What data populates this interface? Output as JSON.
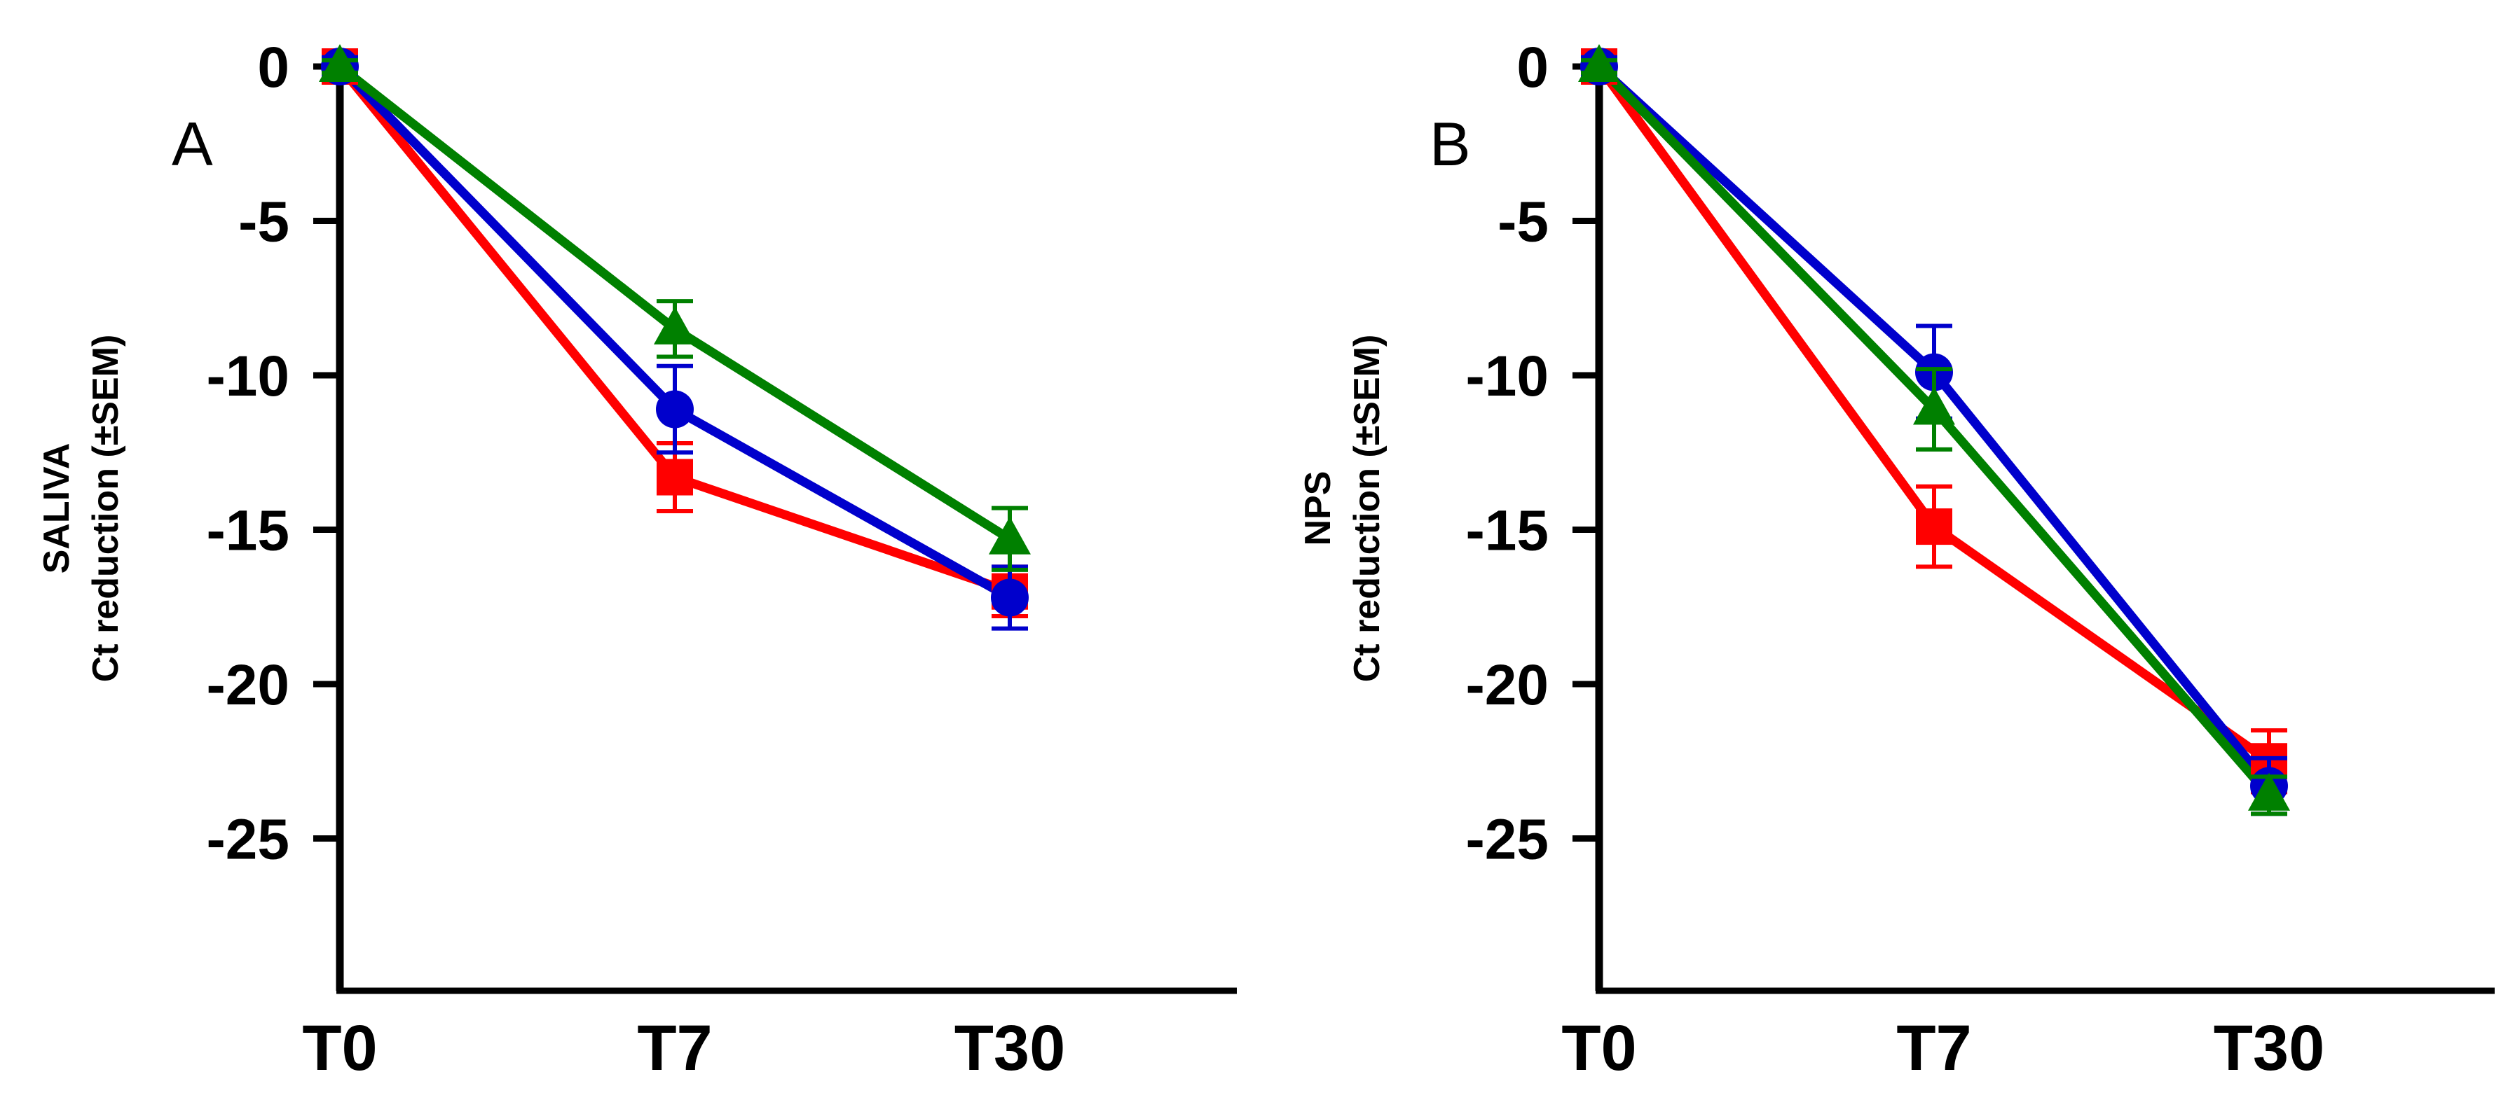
{
  "chart_data": [
    {
      "type": "line",
      "panel_label": "A",
      "ylabel_lines": [
        "SALIVA",
        "Ct reduction (±SEM)"
      ],
      "categories": [
        "T0",
        "T7",
        "T30"
      ],
      "yticks": [
        0,
        -5,
        -10,
        -15,
        -20,
        -25
      ],
      "ylim": [
        -30,
        1
      ],
      "series": [
        {
          "name": "red",
          "color": "#ff0000",
          "marker": "square",
          "values": [
            0,
            -13.3,
            -17.0
          ],
          "sem": [
            0.3,
            1.1,
            0.8
          ]
        },
        {
          "name": "blue",
          "color": "#0000cc",
          "marker": "circle",
          "values": [
            0,
            -11.1,
            -17.2
          ],
          "sem": [
            0.3,
            1.4,
            1.0
          ]
        },
        {
          "name": "green",
          "color": "#008000",
          "marker": "triangle",
          "values": [
            0,
            -8.5,
            -15.3
          ],
          "sem": [
            0.2,
            0.9,
            1.0
          ]
        }
      ]
    },
    {
      "type": "line",
      "panel_label": "B",
      "ylabel_lines": [
        "NPS",
        "Ct reduction (±SEM)"
      ],
      "categories": [
        "T0",
        "T7",
        "T30"
      ],
      "yticks": [
        0,
        -5,
        -10,
        -15,
        -20,
        -25
      ],
      "ylim": [
        -30,
        1
      ],
      "series": [
        {
          "name": "red",
          "color": "#ff0000",
          "marker": "square",
          "values": [
            0,
            -14.9,
            -22.5
          ],
          "sem": [
            0.3,
            1.3,
            1.0
          ]
        },
        {
          "name": "blue",
          "color": "#0000cc",
          "marker": "circle",
          "values": [
            0,
            -9.9,
            -23.3
          ],
          "sem": [
            0.3,
            1.5,
            0.9
          ]
        },
        {
          "name": "green",
          "color": "#008000",
          "marker": "triangle",
          "values": [
            0,
            -11.1,
            -23.6
          ],
          "sem": [
            0.2,
            1.3,
            0.6
          ]
        }
      ]
    }
  ]
}
